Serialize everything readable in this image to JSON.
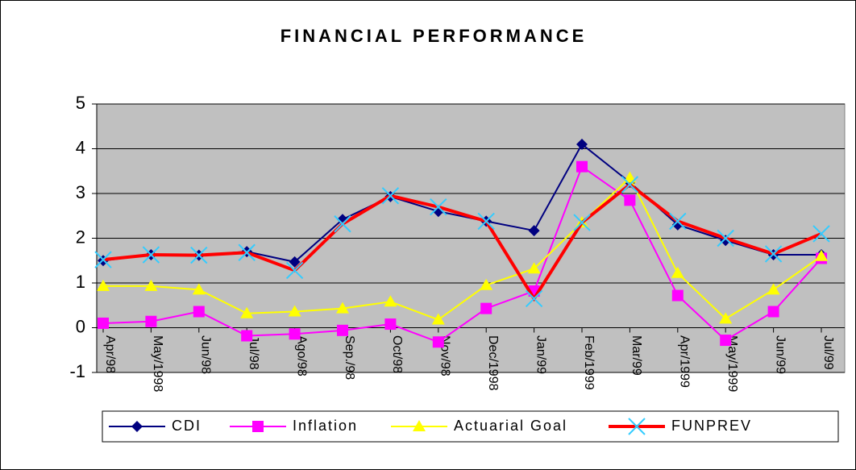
{
  "chart_data": {
    "type": "line",
    "title": "FINANCIAL PERFORMANCE",
    "categories": [
      "Apr/98",
      "May/1998",
      "Jun/98",
      "Jul/98",
      "Ago/98",
      "Sep./98",
      "Oct/98",
      "Nov/98",
      "Dec/1998",
      "Jan/99",
      "Feb/1999",
      "Mar/99",
      "Apr/1999",
      "May/1999",
      "Jun/99",
      "Jul/99"
    ],
    "series": [
      {
        "name": "CDI",
        "color": "#000080",
        "marker": "diamond",
        "values": [
          1.5,
          1.63,
          1.62,
          1.7,
          1.47,
          2.42,
          2.93,
          2.6,
          2.38,
          2.17,
          4.1,
          3.25,
          2.3,
          1.95,
          1.63,
          1.63
        ]
      },
      {
        "name": "Inflation",
        "color": "#ff00ff",
        "marker": "square",
        "values": [
          0.1,
          0.14,
          0.36,
          -0.18,
          -0.14,
          -0.06,
          0.08,
          -0.32,
          0.43,
          0.82,
          3.6,
          2.85,
          0.72,
          -0.28,
          0.36,
          1.55
        ]
      },
      {
        "name": "Actuarial Goal",
        "color": "#ffff00",
        "marker": "triangle",
        "values": [
          0.93,
          0.93,
          0.85,
          0.32,
          0.36,
          0.43,
          0.58,
          0.18,
          0.95,
          1.32,
          2.35,
          3.35,
          1.22,
          0.2,
          0.85,
          1.6
        ]
      },
      {
        "name": "FUNPREV",
        "color": "#ff0000",
        "marker": "cross",
        "marker_color": "#33ccff",
        "values": [
          1.52,
          1.63,
          1.62,
          1.68,
          1.28,
          2.32,
          2.95,
          2.7,
          2.38,
          0.65,
          2.35,
          3.2,
          2.38,
          2.0,
          1.65,
          2.1
        ]
      }
    ],
    "ylim": [
      -1,
      5
    ],
    "yticks": [
      -1,
      0,
      1,
      2,
      3,
      4,
      5
    ],
    "grid": true,
    "plot_background": "#c0c0c0",
    "legend": "bottom"
  }
}
